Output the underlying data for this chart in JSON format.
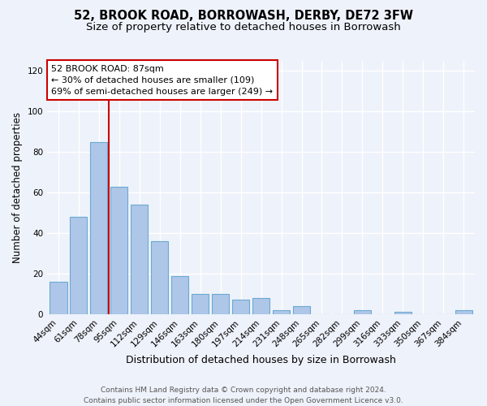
{
  "title": "52, BROOK ROAD, BORROWASH, DERBY, DE72 3FW",
  "subtitle": "Size of property relative to detached houses in Borrowash",
  "xlabel": "Distribution of detached houses by size in Borrowash",
  "ylabel": "Number of detached properties",
  "bar_labels": [
    "44sqm",
    "61sqm",
    "78sqm",
    "95sqm",
    "112sqm",
    "129sqm",
    "146sqm",
    "163sqm",
    "180sqm",
    "197sqm",
    "214sqm",
    "231sqm",
    "248sqm",
    "265sqm",
    "282sqm",
    "299sqm",
    "316sqm",
    "333sqm",
    "350sqm",
    "367sqm",
    "384sqm"
  ],
  "bar_values": [
    16,
    48,
    85,
    63,
    54,
    36,
    19,
    10,
    10,
    7,
    8,
    2,
    4,
    0,
    0,
    2,
    0,
    1,
    0,
    0,
    2
  ],
  "bar_color": "#aec6e8",
  "bar_edge_color": "#6aaad4",
  "ylim": [
    0,
    125
  ],
  "yticks": [
    0,
    20,
    40,
    60,
    80,
    100,
    120
  ],
  "vline_color": "#cc0000",
  "annotation_title": "52 BROOK ROAD: 87sqm",
  "annotation_line1": "← 30% of detached houses are smaller (109)",
  "annotation_line2": "69% of semi-detached houses are larger (249) →",
  "annotation_box_color": "#cc0000",
  "footer_line1": "Contains HM Land Registry data © Crown copyright and database right 2024.",
  "footer_line2": "Contains public sector information licensed under the Open Government Licence v3.0.",
  "background_color": "#eef2fa",
  "grid_color": "#ffffff",
  "title_fontsize": 10.5,
  "subtitle_fontsize": 9.5,
  "ylabel_fontsize": 8.5,
  "xlabel_fontsize": 9,
  "tick_fontsize": 7.5,
  "annotation_fontsize": 8,
  "footer_fontsize": 6.5,
  "vline_pos": 2.5
}
